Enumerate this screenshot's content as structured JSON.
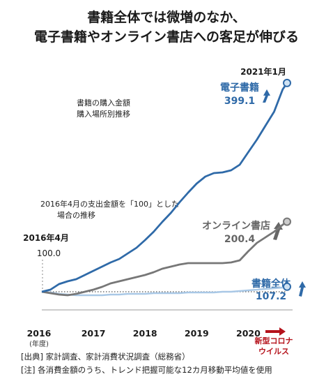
{
  "header": {
    "title_line1": "書籍全体では微増のなか、",
    "title_line2": "電子書籍やオンライン書店への客足が伸びる"
  },
  "notes": {
    "purchase_l1": "書籍の購入金額",
    "purchase_l2": "購入場所別推移",
    "index_l1": "2016年4月の支出金額を「100」とした",
    "index_l2": "場合の推移",
    "base_period": "2016年4月",
    "base_value": "100.0",
    "end_period": "2021年1月",
    "fiscal_year": "(年度)",
    "corona_l1": "新型コロナ",
    "corona_l2": "ウイルス"
  },
  "footer": {
    "source": "[出典] 家計調査、家計消費状況調査（総務省）",
    "note": "[注] 各消費金額のうち、トレンド把握可能な12カ月移動平均値を使用"
  },
  "colors": {
    "ebook": "#2f6aa8",
    "online": "#777777",
    "total": "#a9c8e6",
    "corona": "#b5121b",
    "baseline": "#555555"
  },
  "chart_data": {
    "type": "line",
    "x_axis_type": "date (monthly)",
    "xlim": [
      "2016-04",
      "2021-01"
    ],
    "ylim": [
      60,
      410
    ],
    "xticks": [
      "2016",
      "2017",
      "2018",
      "2019",
      "2020"
    ],
    "baseline": 100,
    "series": [
      {
        "name": "電子書籍",
        "value_label": "399.1",
        "color": "#2f6aa8",
        "points": [
          [
            "2016-04",
            100
          ],
          [
            "2016-06",
            103
          ],
          [
            "2016-08",
            111
          ],
          [
            "2016-10",
            115
          ],
          [
            "2016-12",
            118
          ],
          [
            "2017-02",
            124
          ],
          [
            "2017-04",
            130
          ],
          [
            "2017-06",
            136
          ],
          [
            "2017-08",
            142
          ],
          [
            "2017-10",
            147
          ],
          [
            "2017-12",
            155
          ],
          [
            "2018-02",
            163
          ],
          [
            "2018-04",
            174
          ],
          [
            "2018-06",
            186
          ],
          [
            "2018-08",
            200
          ],
          [
            "2018-10",
            213
          ],
          [
            "2018-12",
            228
          ],
          [
            "2019-02",
            242
          ],
          [
            "2019-04",
            255
          ],
          [
            "2019-06",
            265
          ],
          [
            "2019-08",
            270
          ],
          [
            "2019-10",
            271
          ],
          [
            "2019-12",
            274
          ],
          [
            "2020-02",
            282
          ],
          [
            "2020-04",
            300
          ],
          [
            "2020-06",
            318
          ],
          [
            "2020-08",
            338
          ],
          [
            "2020-10",
            358
          ],
          [
            "2020-12",
            390
          ],
          [
            "2021-01",
            399.1
          ]
        ]
      },
      {
        "name": "オンライン書店",
        "value_label": "200.4",
        "color": "#777777",
        "points": [
          [
            "2016-04",
            100
          ],
          [
            "2016-06",
            98
          ],
          [
            "2016-08",
            96
          ],
          [
            "2016-10",
            95
          ],
          [
            "2016-12",
            97
          ],
          [
            "2017-02",
            100
          ],
          [
            "2017-04",
            103
          ],
          [
            "2017-06",
            107
          ],
          [
            "2017-08",
            112
          ],
          [
            "2017-10",
            115
          ],
          [
            "2017-12",
            118
          ],
          [
            "2018-02",
            121
          ],
          [
            "2018-04",
            124
          ],
          [
            "2018-06",
            128
          ],
          [
            "2018-08",
            133
          ],
          [
            "2018-10",
            136
          ],
          [
            "2018-12",
            139
          ],
          [
            "2019-02",
            141
          ],
          [
            "2019-04",
            141
          ],
          [
            "2019-06",
            141
          ],
          [
            "2019-08",
            141
          ],
          [
            "2019-10",
            141
          ],
          [
            "2019-12",
            142
          ],
          [
            "2020-02",
            145
          ],
          [
            "2020-04",
            158
          ],
          [
            "2020-06",
            170
          ],
          [
            "2020-08",
            178
          ],
          [
            "2020-10",
            186
          ],
          [
            "2020-12",
            196
          ],
          [
            "2021-01",
            200.4
          ]
        ]
      },
      {
        "name": "書籍全体",
        "value_label": "107.2",
        "color": "#a9c8e6",
        "points": [
          [
            "2016-04",
            100
          ],
          [
            "2016-06",
            99
          ],
          [
            "2016-08",
            97
          ],
          [
            "2016-10",
            96
          ],
          [
            "2016-12",
            95
          ],
          [
            "2017-02",
            95
          ],
          [
            "2017-04",
            95
          ],
          [
            "2017-06",
            95
          ],
          [
            "2017-08",
            96
          ],
          [
            "2017-10",
            96
          ],
          [
            "2017-12",
            97
          ],
          [
            "2018-02",
            97
          ],
          [
            "2018-04",
            97
          ],
          [
            "2018-06",
            98
          ],
          [
            "2018-08",
            98
          ],
          [
            "2018-10",
            98
          ],
          [
            "2018-12",
            98
          ],
          [
            "2019-02",
            99
          ],
          [
            "2019-04",
            99
          ],
          [
            "2019-06",
            99
          ],
          [
            "2019-08",
            99
          ],
          [
            "2019-10",
            100
          ],
          [
            "2019-12",
            100
          ],
          [
            "2020-02",
            101
          ],
          [
            "2020-04",
            102
          ],
          [
            "2020-06",
            103
          ],
          [
            "2020-08",
            104
          ],
          [
            "2020-10",
            105
          ],
          [
            "2020-12",
            106
          ],
          [
            "2021-01",
            107.2
          ]
        ]
      }
    ]
  }
}
